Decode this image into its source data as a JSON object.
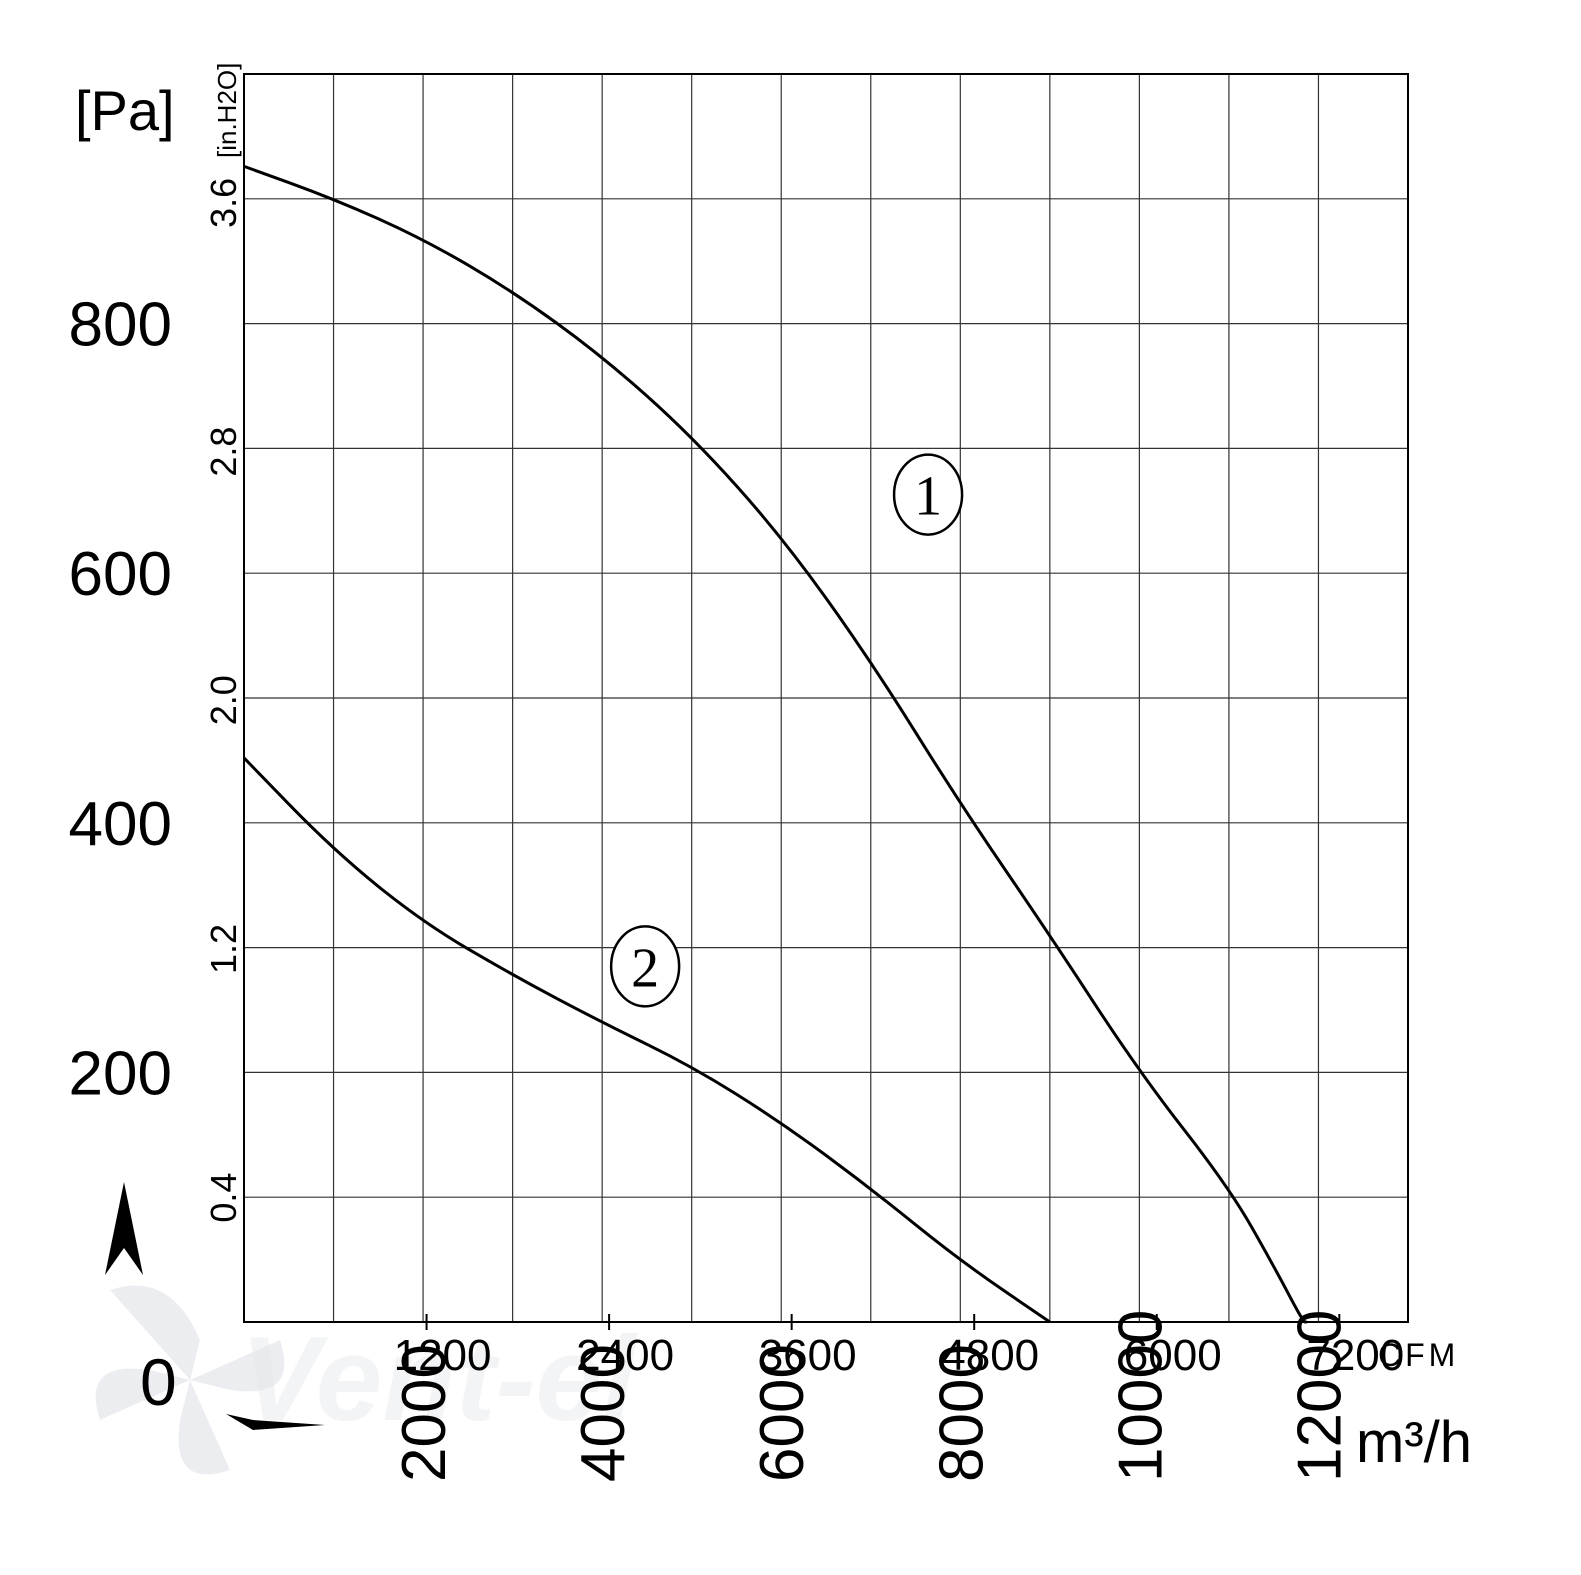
{
  "chart_data": {
    "type": "line",
    "y_primary": {
      "unit": "[Pa]",
      "ticks": [
        "800",
        "600",
        "400",
        "200"
      ],
      "tick_values": [
        800,
        600,
        400,
        200
      ],
      "range": [
        0,
        1000
      ]
    },
    "y_secondary": {
      "unit": "[in.H2O]",
      "ticks": [
        "3.6",
        "2.8",
        "2.0",
        "1.2",
        "0.4"
      ],
      "tick_values": [
        3.6,
        2.8,
        2.0,
        1.2,
        0.4
      ]
    },
    "x_primary": {
      "unit": "m³/h",
      "ticks": [
        "2000",
        "4000",
        "6000",
        "8000",
        "10000",
        "12000"
      ],
      "tick_values": [
        2000,
        4000,
        6000,
        8000,
        10000,
        12000
      ],
      "range": [
        0,
        13000
      ]
    },
    "x_secondary": {
      "unit": "CFM",
      "ticks": [
        "1200",
        "2400",
        "3600",
        "4800",
        "6000",
        "7200"
      ],
      "tick_values": [
        1200,
        2400,
        3600,
        4800,
        6000,
        7200
      ]
    },
    "origin_label": "0",
    "grid": true,
    "series": [
      {
        "name": "1",
        "label": "①",
        "x": [
          0,
          1000,
          2000,
          3000,
          4000,
          5000,
          6000,
          7000,
          8000,
          9000,
          10000,
          11000,
          11500,
          11830,
          11870
        ],
        "y": [
          926,
          900,
          868,
          826,
          774,
          710,
          630,
          530,
          415,
          310,
          200,
          108,
          45,
          0,
          0
        ]
      },
      {
        "name": "2",
        "label": "②",
        "x": [
          0,
          1000,
          2000,
          3000,
          4000,
          5000,
          6000,
          7000,
          8000,
          9000
        ],
        "y": [
          452,
          378,
          320,
          278,
          240,
          205,
          160,
          107,
          49,
          0
        ]
      }
    ],
    "colors": {
      "line": "#000000",
      "grid": "#333333",
      "watermark": "#cfd5dc"
    }
  },
  "watermark": "Vent-el"
}
